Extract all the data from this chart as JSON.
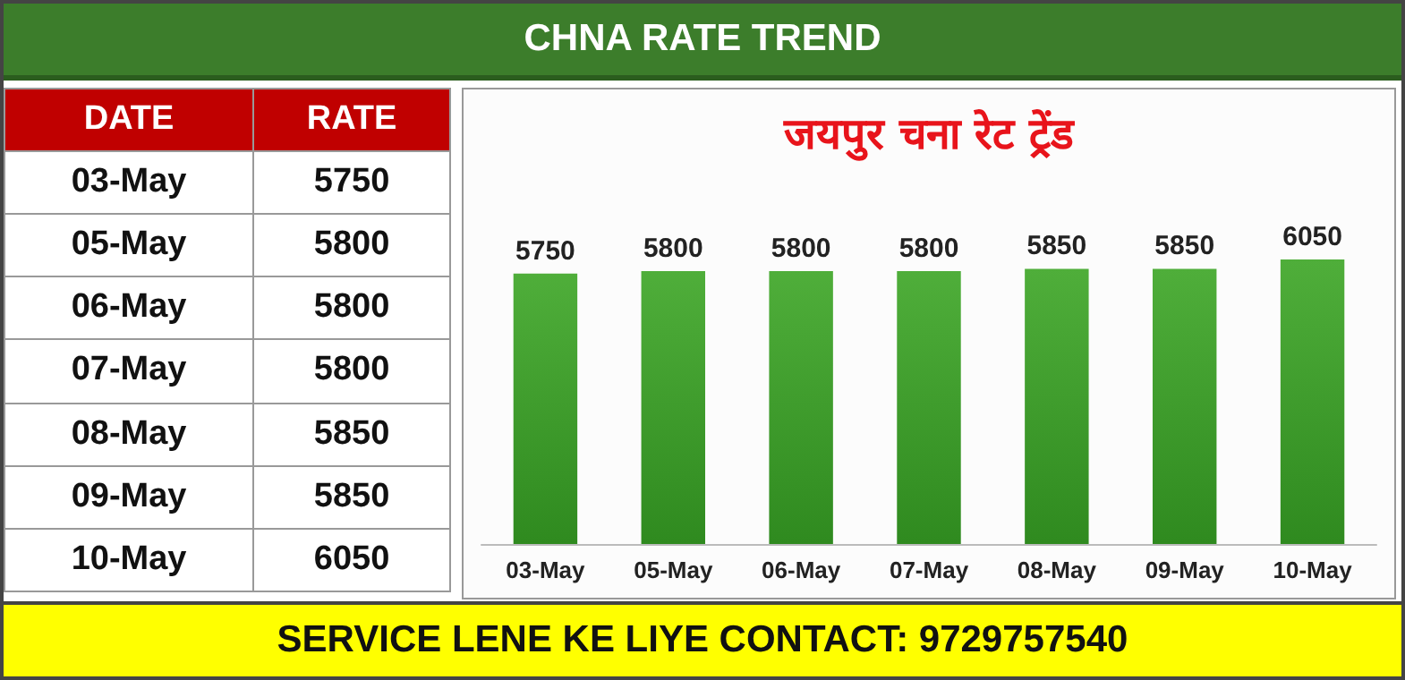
{
  "chart_data": [
    {
      "type": "other",
      "annotations": [
        "DATE",
        "RATE"
      ],
      "categories": [
        "03-May",
        "05-May",
        "06-May",
        "07-May",
        "08-May",
        "09-May",
        "10-May"
      ],
      "values": [
        5750,
        5800,
        5800,
        5800,
        5850,
        5850,
        6050
      ],
      "data_labels": true
    },
    {
      "type": "bar",
      "title": "CHNA RATE TREND",
      "subtitle": "जयपुर चना रेट ट्रेंड",
      "categories": [
        "03-May",
        "05-May",
        "06-May",
        "07-May",
        "08-May",
        "09-May",
        "10-May"
      ],
      "values": [
        5750,
        5800,
        5800,
        5800,
        5850,
        5850,
        6050
      ],
      "color": "#4fae3a",
      "data_labels": true,
      "annotations": [
        "SERVICE LENE KE LIYE CONTACT: 9729757540"
      ]
    }
  ]
}
